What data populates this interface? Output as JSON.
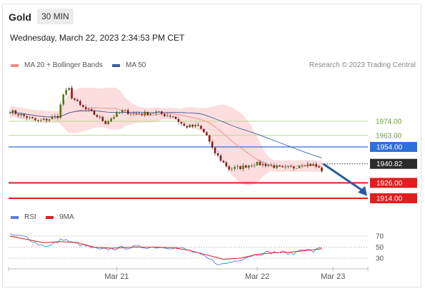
{
  "header": {
    "symbol": "Gold",
    "timeframe": "30 MIN",
    "datetime": "Wednesday, March 22, 2023 2:34:53 PM CET"
  },
  "legend": {
    "price": [
      {
        "label": "MA 20 + Bollinger Bands",
        "color": "#f08a8a"
      },
      {
        "label": "MA 50",
        "color": "#3a5f9a"
      }
    ],
    "rsi": [
      {
        "label": "RSI",
        "color": "#5b7fd6"
      },
      {
        "label": "9MA",
        "color": "#e01e1e"
      }
    ],
    "credit": "Research © 2023 Trading Central"
  },
  "chart_data": {
    "type": "candlestick",
    "ylim": [
      1906,
      2000
    ],
    "current_price": {
      "value": 1940.82,
      "label": "1940.82"
    },
    "levels": [
      {
        "value": 1974.0,
        "label": "1974.00",
        "kind": "resistance-minor",
        "color": "#b9d98f"
      },
      {
        "value": 1963.0,
        "label": "1963.00",
        "kind": "resistance-minor",
        "color": "#b9d98f"
      },
      {
        "value": 1954.0,
        "label": "1954.00",
        "kind": "pivot",
        "color": "#2f6fdb"
      },
      {
        "value": 1926.0,
        "label": "1926.00",
        "kind": "support",
        "color": "#e01e1e"
      },
      {
        "value": 1914.0,
        "label": "1914.00",
        "kind": "support",
        "color": "#e01e1e"
      }
    ],
    "forecast_arrow": {
      "from": 1940.8,
      "to": 1918
    },
    "x_ticks": [
      "Mar 21",
      "Mar 22",
      "Mar 23"
    ],
    "x_tick_index": [
      38,
      88,
      115
    ],
    "n_bars": 120,
    "price_path": [
      [
        0,
        1982
      ],
      [
        5,
        1978
      ],
      [
        10,
        1974
      ],
      [
        14,
        1976
      ],
      [
        17,
        1978
      ],
      [
        19,
        1995
      ],
      [
        21,
        1999
      ],
      [
        22,
        1993
      ],
      [
        25,
        1986
      ],
      [
        28,
        1982
      ],
      [
        31,
        1978
      ],
      [
        34,
        1973
      ],
      [
        37,
        1978
      ],
      [
        40,
        1982
      ],
      [
        44,
        1980
      ],
      [
        48,
        1980
      ],
      [
        52,
        1981
      ],
      [
        55,
        1979
      ],
      [
        58,
        1978
      ],
      [
        62,
        1970
      ],
      [
        67,
        1970
      ],
      [
        70,
        1963
      ],
      [
        72,
        1952
      ],
      [
        75,
        1944
      ],
      [
        78,
        1937
      ],
      [
        82,
        1938
      ],
      [
        87,
        1941
      ],
      [
        92,
        1940
      ],
      [
        97,
        1937
      ],
      [
        101,
        1938
      ],
      [
        104,
        1941
      ],
      [
        108,
        1940
      ],
      [
        111,
        1936
      ]
    ],
    "rsi": {
      "ylim": [
        10,
        90
      ],
      "levels": [
        70,
        50,
        30
      ],
      "path": [
        [
          0,
          72
        ],
        [
          6,
          68
        ],
        [
          10,
          55
        ],
        [
          14,
          52
        ],
        [
          19,
          65
        ],
        [
          22,
          58
        ],
        [
          27,
          52
        ],
        [
          32,
          45
        ],
        [
          38,
          48
        ],
        [
          44,
          50
        ],
        [
          50,
          50
        ],
        [
          56,
          50
        ],
        [
          61,
          48
        ],
        [
          66,
          40
        ],
        [
          71,
          28
        ],
        [
          75,
          18
        ],
        [
          80,
          25
        ],
        [
          86,
          35
        ],
        [
          91,
          40
        ],
        [
          96,
          41
        ],
        [
          101,
          38
        ],
        [
          104,
          48
        ],
        [
          108,
          42
        ],
        [
          111,
          50
        ]
      ],
      "ma_path": [
        [
          0,
          70
        ],
        [
          6,
          64
        ],
        [
          12,
          58
        ],
        [
          18,
          60
        ],
        [
          24,
          58
        ],
        [
          30,
          50
        ],
        [
          36,
          48
        ],
        [
          44,
          50
        ],
        [
          52,
          50
        ],
        [
          58,
          49
        ],
        [
          64,
          44
        ],
        [
          70,
          36
        ],
        [
          76,
          28
        ],
        [
          82,
          30
        ],
        [
          88,
          37
        ],
        [
          94,
          40
        ],
        [
          100,
          41
        ],
        [
          106,
          44
        ],
        [
          111,
          47
        ]
      ]
    }
  }
}
